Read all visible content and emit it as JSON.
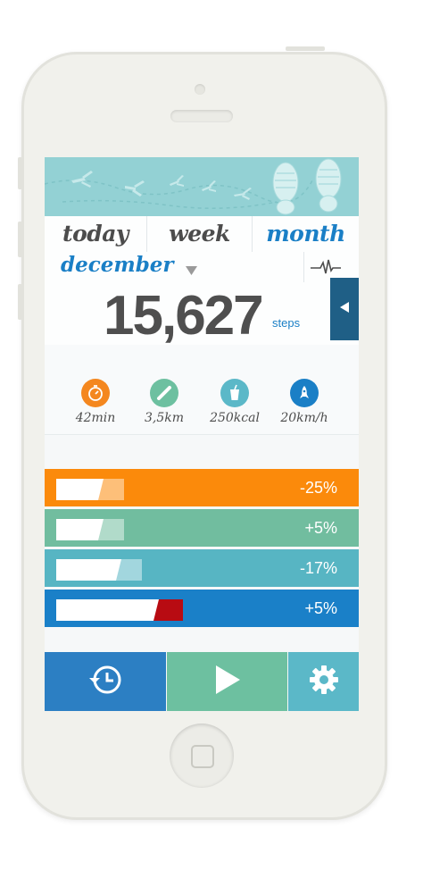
{
  "tabs": [
    {
      "label": "today",
      "active": false
    },
    {
      "label": "week",
      "active": false
    },
    {
      "label": "month",
      "active": true
    }
  ],
  "period": {
    "label": "december",
    "dropdown_icon": "triangle-down-icon",
    "graph_icon": "pulse-icon"
  },
  "summary": {
    "value": "15,627",
    "unit": "steps",
    "side_tab_icon": "triangle-left-icon"
  },
  "metrics": [
    {
      "icon": "stopwatch-icon",
      "value": "42min",
      "color": "#f4871f"
    },
    {
      "icon": "ruler-icon",
      "value": "3,5km",
      "color": "#6dc0a0"
    },
    {
      "icon": "drink-icon",
      "value": "250kcal",
      "color": "#5bb8c8"
    },
    {
      "icon": "rocket-icon",
      "value": "20km/h",
      "color": "#1a7fc6"
    }
  ],
  "comparisons": [
    {
      "change": "-25%",
      "color": "#fb8a0b",
      "current_fraction": 0.16,
      "previous_fraction": 0.23
    },
    {
      "change": "+5%",
      "color": "#71bd9f",
      "current_fraction": 0.16,
      "previous_fraction": 0.23
    },
    {
      "change": "-17%",
      "color": "#57b5c3",
      "current_fraction": 0.22,
      "previous_fraction": 0.29
    },
    {
      "change": "+5%",
      "color": "#1a80c8",
      "current_fraction": 0.35,
      "previous_fraction": 0.43
    }
  ],
  "bottom_bar": [
    {
      "icon": "history-icon",
      "color": "#2c7fc3"
    },
    {
      "icon": "play-icon",
      "color": "#6dc0a0"
    },
    {
      "icon": "gear-icon",
      "color": "#5bb8c8"
    }
  ]
}
